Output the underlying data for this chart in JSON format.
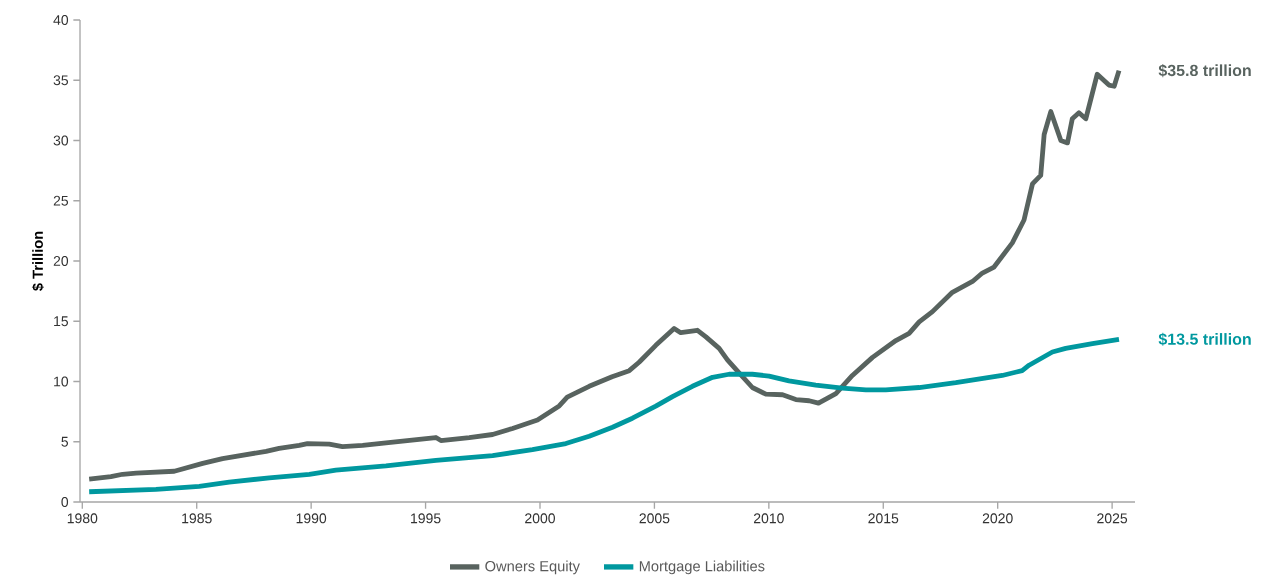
{
  "chart_data": {
    "type": "line",
    "ylabel": "$ Trillion",
    "xlim": [
      1979.9,
      2026
    ],
    "ylim": [
      0,
      40
    ],
    "xticks": [
      1980,
      1985,
      1990,
      1995,
      2000,
      2005,
      2010,
      2015,
      2020,
      2025
    ],
    "yticks": [
      0,
      5,
      10,
      15,
      20,
      25,
      30,
      35,
      40
    ],
    "legend": "bottom",
    "series": [
      {
        "name": "Owners Equity",
        "color": "#58635f",
        "x": [
          1980.3,
          1981.25,
          1981.76,
          1982.35,
          1984.02,
          1985.26,
          1986.13,
          1988.03,
          1988.6,
          1989.48,
          1989.84,
          1990.79,
          1991.37,
          1992.25,
          1993.27,
          1994.72,
          1995.45,
          1995.67,
          1996.91,
          1997.93,
          1998.8,
          1999.89,
          2000.84,
          2001.19,
          2002.15,
          2003.15,
          2003.9,
          2004.33,
          2005.06,
          2005.86,
          2006.15,
          2006.88,
          2007.25,
          2007.83,
          2008.19,
          2008.71,
          2009.28,
          2009.87,
          2010.6,
          2011.18,
          2011.76,
          2012.17,
          2012.93,
          2013.65,
          2014.53,
          2015.55,
          2016.13,
          2016.57,
          2017.15,
          2018.02,
          2018.9,
          2019.33,
          2019.84,
          2020.64,
          2021.15,
          2021.52,
          2021.88,
          2022.03,
          2022.32,
          2022.76,
          2023.05,
          2023.26,
          2023.55,
          2023.85,
          2024.35,
          2024.86,
          2025.09,
          2025.3
        ],
        "values": [
          1.9,
          2.1,
          2.3,
          2.4,
          2.55,
          3.2,
          3.6,
          4.2,
          4.45,
          4.7,
          4.85,
          4.8,
          4.6,
          4.7,
          4.9,
          5.2,
          5.35,
          5.1,
          5.35,
          5.6,
          6.1,
          6.8,
          7.97,
          8.7,
          9.6,
          10.4,
          10.9,
          11.6,
          13.0,
          14.4,
          14.05,
          14.25,
          13.7,
          12.75,
          11.8,
          10.7,
          9.5,
          8.95,
          8.9,
          8.5,
          8.4,
          8.2,
          9.0,
          10.5,
          12.0,
          13.4,
          14.0,
          14.95,
          15.8,
          17.4,
          18.3,
          19.0,
          19.5,
          21.5,
          23.4,
          26.4,
          27.1,
          30.5,
          32.4,
          30.0,
          29.8,
          31.8,
          32.3,
          31.8,
          35.5,
          34.6,
          34.5,
          35.8
        ]
      },
      {
        "name": "Mortgage Liabilities",
        "color": "#00989f",
        "x": [
          1980.3,
          1983.22,
          1985.11,
          1986.42,
          1988.17,
          1989.92,
          1991.08,
          1993.27,
          1995.45,
          1997.93,
          1999.67,
          2001.13,
          2002.15,
          2003.17,
          2004.04,
          2005.06,
          2005.79,
          2006.66,
          2007.54,
          2008.26,
          2009.28,
          2010.01,
          2010.88,
          2012.05,
          2013.21,
          2014.24,
          2015.11,
          2016.57,
          2018.17,
          2020.2,
          2021.07,
          2021.37,
          2022.39,
          2022.97,
          2024.14,
          2025.3
        ],
        "values": [
          0.85,
          1.05,
          1.3,
          1.65,
          2.0,
          2.3,
          2.65,
          3.0,
          3.45,
          3.85,
          4.35,
          4.85,
          5.45,
          6.2,
          6.95,
          7.95,
          8.75,
          9.6,
          10.35,
          10.6,
          10.6,
          10.45,
          10.05,
          9.7,
          9.45,
          9.3,
          9.3,
          9.5,
          9.9,
          10.5,
          10.9,
          11.35,
          12.45,
          12.75,
          13.15,
          13.5
        ]
      }
    ],
    "annotations": [
      {
        "text": "$35.8 trillion",
        "x": 2025.3,
        "y": 35.8
      },
      {
        "text": "$13.5 trillion",
        "x": 2025.3,
        "y": 13.5
      }
    ]
  }
}
